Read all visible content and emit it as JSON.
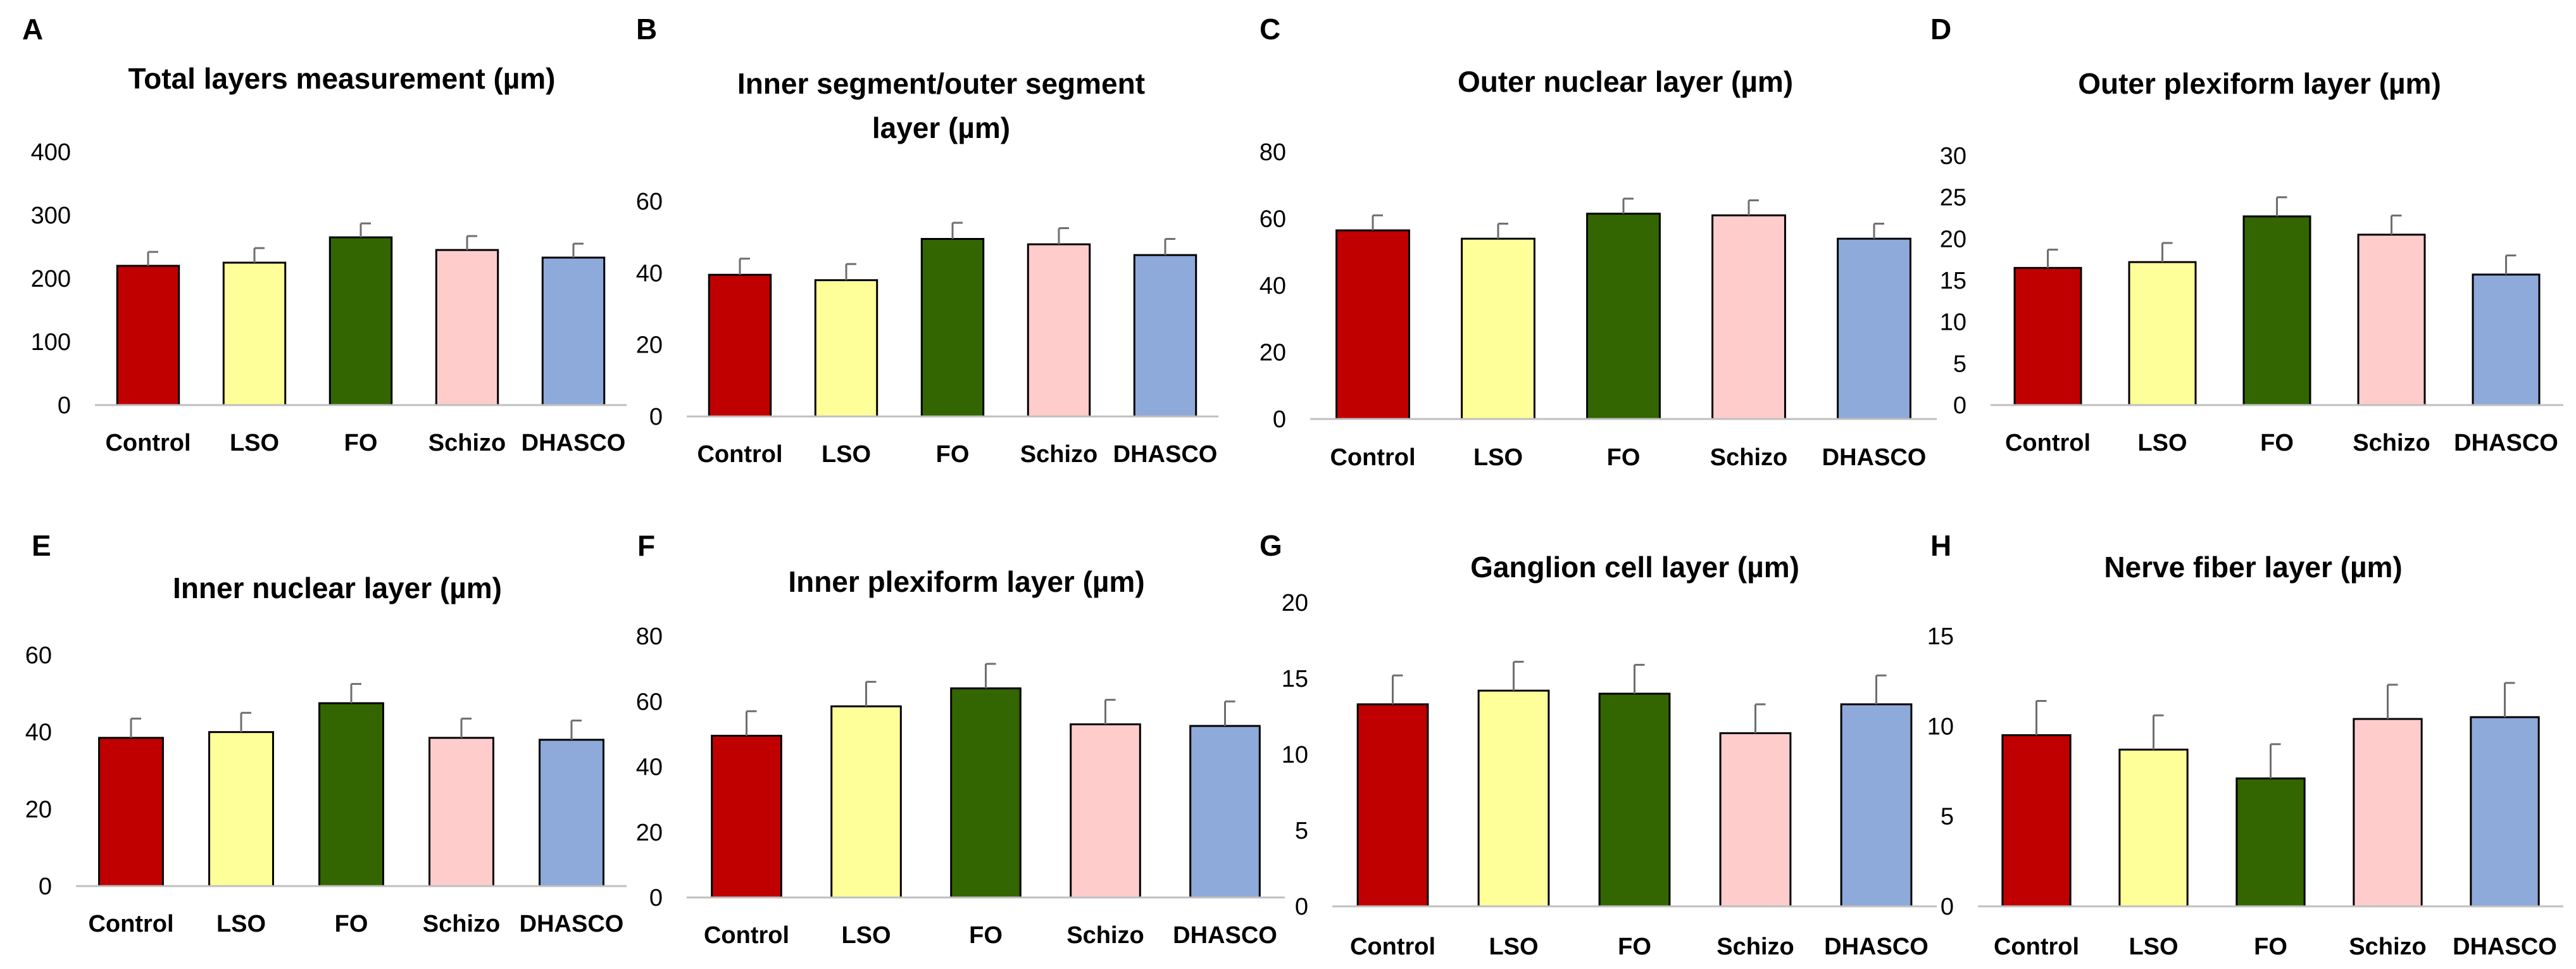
{
  "figure": {
    "panel_count": 8
  },
  "colors": {
    "Control": "#c00000",
    "LSO": "#ffff99",
    "FO": "#336600",
    "Schizo": "#ffcccc",
    "DHASCO": "#8eaadb"
  },
  "chart_data": [
    {
      "panel": "A",
      "type": "bar",
      "title": [
        "Total layers measurement (µm)"
      ],
      "categories": [
        "Control",
        "LSO",
        "FO",
        "Schizo",
        "DHASCO"
      ],
      "values": [
        220,
        225,
        265,
        245,
        233
      ],
      "errors": [
        22,
        23,
        22,
        22,
        22
      ],
      "ylim": [
        0,
        400
      ],
      "yticks": [
        0,
        100,
        200,
        300,
        400
      ],
      "xlabel": "",
      "ylabel": "",
      "grid": false
    },
    {
      "panel": "B",
      "type": "bar",
      "title": [
        "Inner segment/outer segment",
        "layer (µm)"
      ],
      "categories": [
        "Control",
        "LSO",
        "FO",
        "Schizo",
        "DHASCO"
      ],
      "values": [
        39.5,
        38,
        49.5,
        48,
        45
      ],
      "errors": [
        4.5,
        4.5,
        4.5,
        4.5,
        4.5
      ],
      "ylim": [
        0,
        60
      ],
      "yticks": [
        0,
        20,
        40,
        60
      ],
      "xlabel": "",
      "ylabel": "",
      "grid": false
    },
    {
      "panel": "C",
      "type": "bar",
      "title": [
        "Outer nuclear layer (µm)"
      ],
      "categories": [
        "Control",
        "LSO",
        "FO",
        "Schizo",
        "DHASCO"
      ],
      "values": [
        56.5,
        54,
        61.5,
        61,
        54
      ],
      "errors": [
        4.5,
        4.5,
        4.5,
        4.5,
        4.5
      ],
      "ylim": [
        0,
        80
      ],
      "yticks": [
        0,
        20,
        40,
        60,
        80
      ],
      "xlabel": "",
      "ylabel": "",
      "grid": false
    },
    {
      "panel": "D",
      "type": "bar",
      "title": [
        "Outer plexiform layer (µm)"
      ],
      "categories": [
        "Control",
        "LSO",
        "FO",
        "Schizo",
        "DHASCO"
      ],
      "values": [
        16.5,
        17.2,
        22.7,
        20.5,
        15.7
      ],
      "errors": [
        2.2,
        2.3,
        2.3,
        2.3,
        2.3
      ],
      "ylim": [
        0,
        30
      ],
      "yticks": [
        0,
        5,
        10,
        15,
        20,
        25,
        30
      ],
      "xlabel": "",
      "ylabel": "",
      "grid": false
    },
    {
      "panel": "E",
      "type": "bar",
      "title": [
        "Inner nuclear layer (µm)"
      ],
      "categories": [
        "Control",
        "LSO",
        "FO",
        "Schizo",
        "DHASCO"
      ],
      "values": [
        38.5,
        40,
        47.5,
        38.5,
        38
      ],
      "errors": [
        5,
        5,
        5,
        5,
        5
      ],
      "ylim": [
        0,
        60
      ],
      "yticks": [
        0,
        20,
        40,
        60
      ],
      "xlabel": "",
      "ylabel": "",
      "grid": false
    },
    {
      "panel": "F",
      "type": "bar",
      "title": [
        "Inner plexiform layer (µm)"
      ],
      "categories": [
        "Control",
        "LSO",
        "FO",
        "Schizo",
        "DHASCO"
      ],
      "values": [
        49.5,
        58.5,
        64,
        53,
        52.5
      ],
      "errors": [
        7.5,
        7.5,
        7.5,
        7.5,
        7.5
      ],
      "ylim": [
        0,
        80
      ],
      "yticks": [
        0,
        20,
        40,
        60,
        80
      ],
      "xlabel": "",
      "ylabel": "",
      "grid": false
    },
    {
      "panel": "G",
      "type": "bar",
      "title": [
        "Ganglion cell layer (µm)"
      ],
      "categories": [
        "Control",
        "LSO",
        "FO",
        "Schizo",
        "DHASCO"
      ],
      "values": [
        13.3,
        14.2,
        14,
        11.4,
        13.3
      ],
      "errors": [
        1.9,
        1.9,
        1.9,
        1.9,
        1.9
      ],
      "ylim": [
        0,
        20
      ],
      "yticks": [
        0,
        5,
        10,
        15,
        20
      ],
      "xlabel": "",
      "ylabel": "",
      "grid": false
    },
    {
      "panel": "H",
      "type": "bar",
      "title": [
        "Nerve fiber layer (µm)"
      ],
      "categories": [
        "Control",
        "LSO",
        "FO",
        "Schizo",
        "DHASCO"
      ],
      "values": [
        9.5,
        8.7,
        7.1,
        10.4,
        10.5
      ],
      "errors": [
        1.9,
        1.9,
        1.9,
        1.9,
        1.9
      ],
      "ylim": [
        0,
        15
      ],
      "yticks": [
        0,
        5,
        10,
        15
      ],
      "xlabel": "",
      "ylabel": "",
      "grid": false
    }
  ]
}
